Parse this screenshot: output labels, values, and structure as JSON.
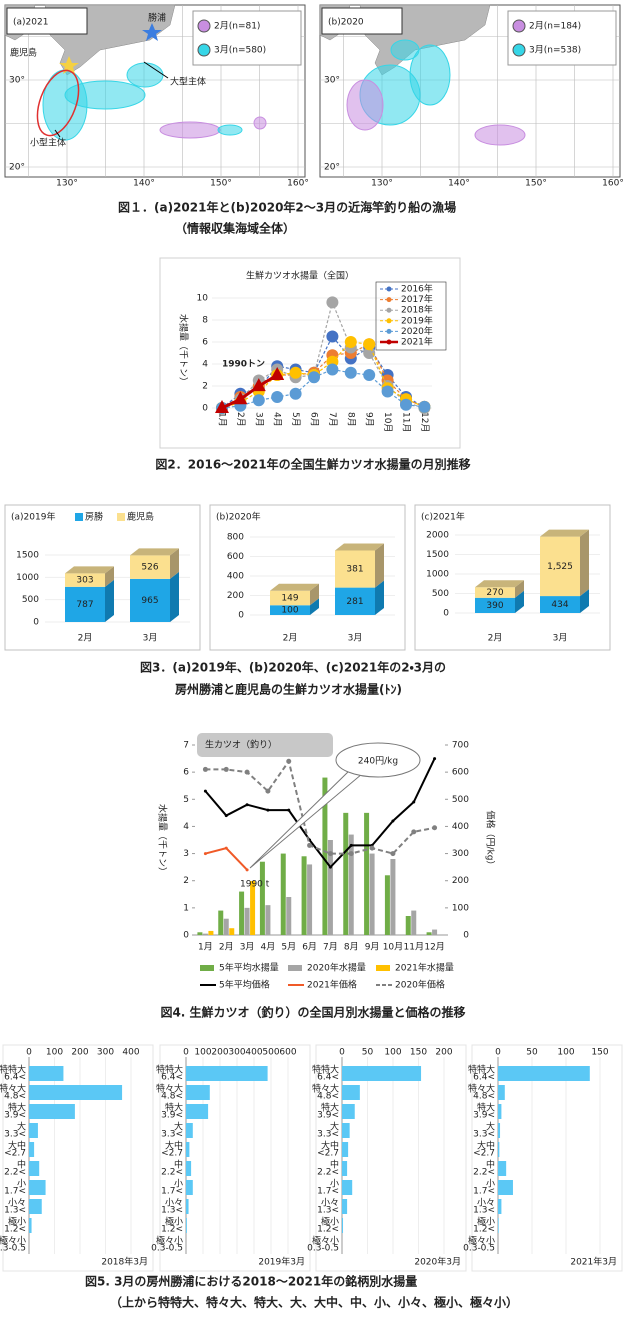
{
  "figure1": {
    "maps": [
      {
        "label": "(a)2021",
        "legend": [
          {
            "name": "2月(n=81)",
            "color": "#c88ee0"
          },
          {
            "name": "3月(n=580)",
            "color": "#36d6e7"
          }
        ],
        "annotations": [
          "勝浦",
          "鹿児島",
          "大型主体",
          "小型主体"
        ]
      },
      {
        "label": "(b)2020",
        "legend": [
          {
            "name": "2月(n=184)",
            "color": "#c88ee0"
          },
          {
            "name": "3月(n=538)",
            "color": "#36d6e7"
          }
        ]
      }
    ],
    "lat_labels": [
      "30°",
      "20°"
    ],
    "lon_labels": [
      "130°",
      "140°",
      "150°",
      "160°"
    ],
    "caption": [
      "図１．(a)2021年と(b)2020年2～3月の近海竿釣り船の漁場",
      "（情報収集海域全体）"
    ]
  },
  "figure2": {
    "type": "line",
    "title": "生鮮カツオ水揚量（全国）",
    "y_label": "水揚量（千トン）",
    "annotation": "1990トン",
    "categories": [
      "1月",
      "2月",
      "3月",
      "4月",
      "5月",
      "6月",
      "7月",
      "8月",
      "9月",
      "10月",
      "11月",
      "12月"
    ],
    "ylim": [
      0,
      10
    ],
    "yticks": [
      0,
      2,
      4,
      6,
      8,
      10
    ],
    "series": [
      {
        "name": "2016年",
        "color": "#4472c4",
        "values": [
          0,
          1.3,
          1.8,
          3.8,
          3.5,
          3.2,
          6.5,
          4.5,
          5.5,
          3.0,
          1.0,
          0.1
        ]
      },
      {
        "name": "2017年",
        "color": "#ed7d31",
        "values": [
          0,
          1.0,
          2.0,
          3.0,
          3.0,
          3.2,
          4.8,
          5.0,
          5.8,
          2.5,
          0.8,
          0.1
        ]
      },
      {
        "name": "2018年",
        "color": "#a5a5a5",
        "values": [
          0,
          0.8,
          2.5,
          3.5,
          2.8,
          3.0,
          9.6,
          5.5,
          5.0,
          2.0,
          0.5,
          0
        ]
      },
      {
        "name": "2019年",
        "color": "#ffc000",
        "values": [
          0,
          0.5,
          1.5,
          3.0,
          3.2,
          3.0,
          4.2,
          6.0,
          5.8,
          1.8,
          0.8,
          0.1
        ]
      },
      {
        "name": "2020年",
        "color": "#5b9bd5",
        "values": [
          0,
          0.2,
          0.7,
          1.0,
          1.3,
          2.8,
          3.5,
          3.2,
          3.0,
          1.5,
          0.3,
          0.1
        ]
      },
      {
        "name": "2021年",
        "color": "#c00000",
        "values": [
          0,
          0.8,
          1.99,
          3.0,
          null,
          null,
          null,
          null,
          null,
          null,
          null,
          null
        ]
      }
    ],
    "caption": "図2．2016～2021年の全国生鮮カツオ水揚量の月別推移"
  },
  "figure3": {
    "type": "bar",
    "series": [
      {
        "name": "房勝",
        "color": "#1fa6e6"
      },
      {
        "name": "鹿児島",
        "color": "#fbe08f"
      }
    ],
    "charts": [
      {
        "title": "(a)2019年",
        "categories": [
          "2月",
          "3月"
        ],
        "ylim": [
          0,
          1500
        ],
        "yticks": [
          0,
          500,
          1000,
          1500
        ],
        "values": [
          [
            787,
            965
          ],
          [
            303,
            526
          ]
        ],
        "value_labels": [
          [
            "787",
            "965"
          ],
          [
            "303",
            "526"
          ]
        ]
      },
      {
        "title": "(b)2020年",
        "categories": [
          "2月",
          "3月"
        ],
        "ylim": [
          0,
          800
        ],
        "yticks": [
          0,
          200,
          400,
          600,
          800
        ],
        "values": [
          [
            100,
            281
          ],
          [
            149,
            381
          ]
        ],
        "value_labels": [
          [
            "100",
            "281"
          ],
          [
            "149",
            "381"
          ]
        ]
      },
      {
        "title": "(c)2021年",
        "categories": [
          "2月",
          "3月"
        ],
        "ylim": [
          0,
          2000
        ],
        "yticks": [
          0,
          500,
          1000,
          1500,
          2000
        ],
        "values": [
          [
            390,
            434
          ],
          [
            270,
            1525
          ]
        ],
        "value_labels": [
          [
            "390",
            "434"
          ],
          [
            "270",
            "1,525"
          ]
        ]
      }
    ],
    "caption": [
      "図3．(a)2019年、(b)2020年、(c)2021年の2・3月の",
      "房州勝浦と鹿児島の生鮮カツオ水揚量(ﾄﾝ)"
    ]
  },
  "figure4": {
    "type": "bar-line",
    "title": "生カツオ（釣り）",
    "y_label": "水揚量（千トン）",
    "y2_label": "価格（円/kg）",
    "annotations": [
      "240円/kg",
      "1990 t"
    ],
    "categories": [
      "1月",
      "2月",
      "3月",
      "4月",
      "5月",
      "6月",
      "7月",
      "8月",
      "9月",
      "10月",
      "11月",
      "12月"
    ],
    "ylim": [
      0,
      7
    ],
    "yticks": [
      0,
      1,
      2,
      3,
      4,
      5,
      6,
      7
    ],
    "y2lim": [
      0,
      700
    ],
    "y2ticks": [
      0,
      100,
      200,
      300,
      400,
      500,
      600,
      700
    ],
    "series": [
      {
        "name": "5年平均水揚量",
        "color": "#70ad47",
        "type": "bar",
        "values": [
          0.1,
          0.9,
          1.6,
          2.7,
          3.0,
          2.9,
          5.8,
          4.5,
          4.5,
          2.2,
          0.7,
          0.1
        ]
      },
      {
        "name": "2020年水揚量",
        "color": "#a5a5a5",
        "type": "bar",
        "values": [
          0.05,
          0.6,
          1.0,
          1.1,
          1.4,
          2.6,
          3.5,
          3.7,
          3.0,
          2.8,
          0.9,
          0.2
        ]
      },
      {
        "name": "2021年水揚量",
        "color": "#ffc000",
        "type": "bar",
        "values": [
          0.15,
          0.25,
          1.99,
          null,
          null,
          null,
          null,
          null,
          null,
          null,
          null,
          null
        ]
      },
      {
        "name": "5年平均価格",
        "color": "#000000",
        "type": "line",
        "axis": "y2",
        "values": [
          530,
          440,
          480,
          460,
          460,
          350,
          250,
          330,
          330,
          420,
          490,
          650
        ]
      },
      {
        "name": "2021年価格",
        "color": "#f05a28",
        "type": "line",
        "axis": "y2",
        "values": [
          300,
          320,
          240,
          null,
          null,
          null,
          null,
          null,
          null,
          null,
          null,
          null
        ]
      },
      {
        "name": "2020年価格",
        "color": "#808080",
        "type": "line",
        "axis": "y2",
        "dash": true,
        "values": [
          610,
          610,
          600,
          530,
          640,
          330,
          300,
          300,
          320,
          300,
          380,
          395
        ]
      }
    ],
    "caption": "図4. 生鮮カツオ（釣り）の全国月別水揚量と価格の推移"
  },
  "figure5": {
    "type": "barh",
    "color": "#5bc8f5",
    "categories": [
      "特特大",
      "特々大",
      "特大",
      "大",
      "大中",
      "中",
      "小",
      "小々",
      "極小",
      "極々小"
    ],
    "sublabels": [
      "6.4<",
      "4.8<",
      "3.9<",
      "3.3<",
      "<2.7",
      "2.2<",
      "1.7<",
      "1.3<",
      "1.2<",
      "0.3-0.5"
    ],
    "charts": [
      {
        "label": "2018年3月",
        "xlim": [
          0,
          400
        ],
        "xticks": [
          0,
          100,
          200,
          300,
          400
        ],
        "values": [
          135,
          365,
          180,
          35,
          20,
          40,
          65,
          50,
          10,
          0
        ]
      },
      {
        "label": "2019年3月",
        "xlim": [
          0,
          600
        ],
        "xticks": [
          0,
          100,
          200,
          300,
          400,
          500,
          600
        ],
        "values": [
          480,
          140,
          130,
          40,
          20,
          30,
          40,
          15,
          5,
          0
        ]
      },
      {
        "label": "2020年3月",
        "xlim": [
          0,
          200
        ],
        "xticks": [
          0,
          50,
          100,
          150,
          200
        ],
        "values": [
          155,
          35,
          25,
          15,
          12,
          10,
          20,
          10,
          2,
          0
        ]
      },
      {
        "label": "2021年3月",
        "xlim": [
          0,
          150
        ],
        "xticks": [
          0,
          50,
          100,
          150
        ],
        "values": [
          135,
          10,
          5,
          3,
          2,
          12,
          22,
          5,
          1,
          0
        ]
      }
    ],
    "caption": [
      "図5. 3月の房州勝浦における2018～2021年の銘柄別水揚量",
      "（上から特特大、特々大、特大、大、大中、中、小、小々、極小、極々小）"
    ]
  }
}
